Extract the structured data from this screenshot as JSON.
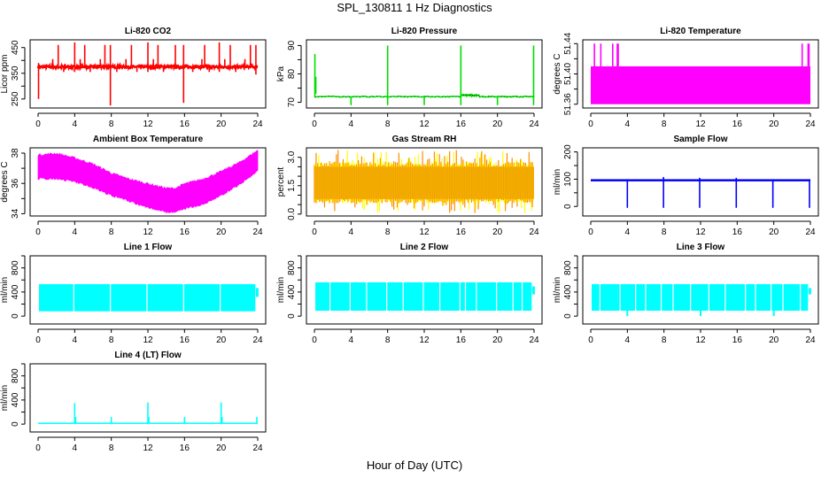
{
  "page": {
    "title": "SPL_130811  1 Hz Diagnostics",
    "x_axis_label": "Hour of Day (UTC)"
  },
  "chart_data": [
    {
      "id": "li820-co2",
      "type": "line",
      "title": "Li-820 CO2",
      "xlabel": "Hour of Day (UTC)",
      "ylabel": "Licor ppm",
      "color": "#ff0000",
      "xlim": [
        0,
        24
      ],
      "ylim": [
        215,
        480
      ],
      "xticks": [
        0,
        4,
        8,
        12,
        16,
        20,
        24
      ],
      "yticks": [
        250,
        300,
        350,
        400,
        450
      ],
      "ytick_labels": [
        "250",
        "",
        "350",
        "",
        "450"
      ],
      "baseline": 375,
      "noise": 5,
      "spikes": [
        {
          "x": 0.05,
          "low": 250,
          "high": 390
        },
        {
          "x": 1.6,
          "low": 375,
          "high": 405
        },
        {
          "x": 2.2,
          "low": 375,
          "high": 460
        },
        {
          "x": 2.8,
          "low": 355,
          "high": 375
        },
        {
          "x": 4.0,
          "low": 355,
          "high": 470
        },
        {
          "x": 4.6,
          "low": 375,
          "high": 405
        },
        {
          "x": 5.1,
          "low": 375,
          "high": 460
        },
        {
          "x": 5.7,
          "low": 355,
          "high": 375
        },
        {
          "x": 6.8,
          "low": 375,
          "high": 405
        },
        {
          "x": 7.3,
          "low": 375,
          "high": 460
        },
        {
          "x": 7.9,
          "low": 225,
          "high": 460
        },
        {
          "x": 8.6,
          "low": 355,
          "high": 375
        },
        {
          "x": 9.6,
          "low": 375,
          "high": 405
        },
        {
          "x": 10.2,
          "low": 375,
          "high": 460
        },
        {
          "x": 10.8,
          "low": 355,
          "high": 375
        },
        {
          "x": 12.0,
          "low": 355,
          "high": 470
        },
        {
          "x": 12.6,
          "low": 375,
          "high": 405
        },
        {
          "x": 13.1,
          "low": 375,
          "high": 460
        },
        {
          "x": 13.7,
          "low": 355,
          "high": 375
        },
        {
          "x": 15.0,
          "low": 375,
          "high": 460
        },
        {
          "x": 15.9,
          "low": 235,
          "high": 460
        },
        {
          "x": 16.9,
          "low": 355,
          "high": 375
        },
        {
          "x": 17.9,
          "low": 375,
          "high": 405
        },
        {
          "x": 18.2,
          "low": 375,
          "high": 460
        },
        {
          "x": 18.7,
          "low": 355,
          "high": 375
        },
        {
          "x": 19.8,
          "low": 355,
          "high": 470
        },
        {
          "x": 20.4,
          "low": 375,
          "high": 405
        },
        {
          "x": 21.0,
          "low": 375,
          "high": 460
        },
        {
          "x": 21.6,
          "low": 355,
          "high": 375
        },
        {
          "x": 22.6,
          "low": 375,
          "high": 405
        },
        {
          "x": 23.2,
          "low": 375,
          "high": 460
        },
        {
          "x": 23.8,
          "low": 345,
          "high": 460
        }
      ]
    },
    {
      "id": "li820-pressure",
      "type": "line",
      "title": "Li-820 Pressure",
      "xlabel": "Hour of Day (UTC)",
      "ylabel": "kPa",
      "color": "#00dd00",
      "xlim": [
        0,
        24
      ],
      "ylim": [
        68,
        92
      ],
      "xticks": [
        0,
        4,
        8,
        12,
        16,
        20,
        24
      ],
      "yticks": [
        70,
        75,
        80,
        85,
        90
      ],
      "ytick_labels": [
        "70",
        "",
        "80",
        "",
        "90"
      ],
      "baseline": 72,
      "noise": 0.15,
      "segments": [
        {
          "x0": 0,
          "x1": 16,
          "value": 72
        },
        {
          "x0": 16,
          "x1": 18,
          "value": 72.5
        },
        {
          "x0": 18,
          "x1": 24,
          "value": 72
        }
      ],
      "spikes": [
        {
          "x": 0.05,
          "low": 72,
          "high": 87
        },
        {
          "x": 0.15,
          "low": 73,
          "high": 79
        },
        {
          "x": 4.0,
          "low": 69,
          "high": 72
        },
        {
          "x": 8.0,
          "low": 69,
          "high": 90
        },
        {
          "x": 12.0,
          "low": 69,
          "high": 72
        },
        {
          "x": 16.0,
          "low": 69,
          "high": 90
        },
        {
          "x": 20.0,
          "low": 69,
          "high": 72
        },
        {
          "x": 23.95,
          "low": 69,
          "high": 90
        }
      ]
    },
    {
      "id": "li820-temperature",
      "type": "area",
      "title": "Li-820 Temperature",
      "xlabel": "Hour of Day (UTC)",
      "ylabel": "degrees C",
      "color": "#ff00ff",
      "xlim": [
        0,
        24
      ],
      "ylim": [
        51.355,
        51.445
      ],
      "xticks": [
        0,
        4,
        8,
        12,
        16,
        20,
        24
      ],
      "yticks": [
        51.36,
        51.38,
        51.4,
        51.42,
        51.44
      ],
      "ytick_labels": [
        "51.36",
        "",
        "51.40",
        "",
        "51.44"
      ],
      "band": {
        "low": 51.36,
        "high": 51.41
      },
      "spikes": [
        {
          "x": 0.4,
          "low": 51.41,
          "high": 51.44
        },
        {
          "x": 1.1,
          "low": 51.41,
          "high": 51.44
        },
        {
          "x": 2.4,
          "low": 51.41,
          "high": 51.44
        },
        {
          "x": 2.9,
          "low": 51.41,
          "high": 51.44
        },
        {
          "x": 3.0,
          "low": 51.41,
          "high": 51.44
        },
        {
          "x": 23.1,
          "low": 51.41,
          "high": 51.44
        },
        {
          "x": 23.75,
          "low": 51.41,
          "high": 51.44
        },
        {
          "x": 23.85,
          "low": 51.41,
          "high": 51.44
        }
      ]
    },
    {
      "id": "ambient-box-temperature",
      "type": "area",
      "title": "Ambient Box Temperature",
      "xlabel": "Hour of Day (UTC)",
      "ylabel": "degrees C",
      "color": "#ff00ff",
      "xlim": [
        0,
        24
      ],
      "ylim": [
        33.85,
        38.35
      ],
      "xticks": [
        0,
        4,
        8,
        12,
        16,
        20,
        24
      ],
      "yticks": [
        34,
        35,
        36,
        37,
        38
      ],
      "ytick_labels": [
        "34",
        "",
        "36",
        "",
        "38"
      ],
      "envelope": {
        "x": [
          0,
          2,
          4,
          6,
          8,
          10,
          12,
          14,
          15,
          16,
          18,
          20,
          22,
          24
        ],
        "low": [
          36.4,
          36.4,
          36.2,
          35.8,
          35.3,
          34.9,
          34.5,
          34.2,
          34.2,
          34.4,
          34.7,
          35.3,
          36.0,
          36.9
        ],
        "high": [
          37.8,
          37.9,
          37.6,
          37.2,
          36.6,
          36.2,
          35.9,
          35.6,
          35.6,
          35.9,
          36.2,
          36.7,
          37.3,
          38.1
        ]
      }
    },
    {
      "id": "gas-stream-rh",
      "type": "area",
      "title": "Gas Stream RH",
      "xlabel": "Hour of Day (UTC)",
      "ylabel": "percent",
      "color": "#ff8c00",
      "color_secondary": "#ffff00",
      "xlim": [
        0,
        24
      ],
      "ylim": [
        -0.1,
        3.5
      ],
      "xticks": [
        0,
        4,
        8,
        12,
        16,
        20,
        24
      ],
      "yticks": [
        0.0,
        0.5,
        1.0,
        1.5,
        2.0,
        2.5,
        3.0
      ],
      "ytick_labels": [
        "0.0",
        "",
        "",
        "1.5",
        "",
        "",
        "3.0"
      ],
      "band": {
        "low": 0.8,
        "high": 2.5
      },
      "range": {
        "min": 0.05,
        "max": 3.4
      }
    },
    {
      "id": "sample-flow",
      "type": "line",
      "title": "Sample Flow",
      "xlabel": "Hour of Day (UTC)",
      "ylabel": "ml/min",
      "color": "#0000ff",
      "xlim": [
        0,
        24
      ],
      "ylim": [
        -35,
        215
      ],
      "xticks": [
        0,
        4,
        8,
        12,
        16,
        20,
        24
      ],
      "yticks": [
        0,
        50,
        100,
        150,
        200
      ],
      "ytick_labels": [
        "0",
        "",
        "100",
        "",
        "200"
      ],
      "band": {
        "low": 92,
        "high": 100
      },
      "spikes": [
        {
          "x": 4.0,
          "low": -5,
          "high": 100
        },
        {
          "x": 7.95,
          "low": -5,
          "high": 108
        },
        {
          "x": 11.9,
          "low": -5,
          "high": 105
        },
        {
          "x": 15.9,
          "low": -5,
          "high": 105
        },
        {
          "x": 19.9,
          "low": -5,
          "high": 100
        },
        {
          "x": 23.9,
          "low": -5,
          "high": 100
        }
      ]
    },
    {
      "id": "line-1-flow",
      "type": "area",
      "title": "Line 1 Flow",
      "xlabel": "Hour of Day (UTC)",
      "ylabel": "ml/min",
      "color": "#00ffff",
      "xlim": [
        0,
        24
      ],
      "ylim": [
        -130,
        1000
      ],
      "xticks": [
        0,
        4,
        8,
        12,
        16,
        20,
        24
      ],
      "yticks": [
        0,
        200,
        400,
        600,
        800,
        1000
      ],
      "ytick_labels": [
        "0",
        "",
        "400",
        "",
        "800",
        ""
      ],
      "band": {
        "low": 80,
        "high": 530
      },
      "gaps": [
        3.9,
        7.9,
        11.9,
        15.9,
        19.9
      ]
    },
    {
      "id": "line-2-flow",
      "type": "area",
      "title": "Line 2 Flow",
      "xlabel": "Hour of Day (UTC)",
      "ylabel": "ml/min",
      "color": "#00ffff",
      "xlim": [
        0,
        24
      ],
      "ylim": [
        -130,
        1000
      ],
      "xticks": [
        0,
        4,
        8,
        12,
        16,
        20,
        24
      ],
      "yticks": [
        0,
        200,
        400,
        600,
        800,
        1000
      ],
      "ytick_labels": [
        "0",
        "",
        "400",
        "",
        "800",
        ""
      ],
      "band": {
        "low": 90,
        "high": 560
      },
      "gaps": [
        1.7,
        3.9,
        5.7,
        7.9,
        9.7,
        11.9,
        13.7,
        15.9,
        16.5,
        17.7,
        19.9,
        21.7,
        22.7
      ]
    },
    {
      "id": "line-3-flow",
      "type": "area",
      "title": "Line 3 Flow",
      "xlabel": "Hour of Day (UTC)",
      "ylabel": "ml/min",
      "color": "#00ffff",
      "xlim": [
        0,
        24
      ],
      "ylim": [
        -130,
        1000
      ],
      "xticks": [
        0,
        4,
        8,
        12,
        16,
        20,
        24
      ],
      "yticks": [
        0,
        200,
        400,
        600,
        800,
        1000
      ],
      "ytick_labels": [
        "0",
        "",
        "400",
        "",
        "800",
        ""
      ],
      "band": {
        "low": 90,
        "high": 530
      },
      "gaps": [
        1.0,
        3.2,
        4.9,
        6.0,
        7.7,
        9.0,
        10.9,
        12.9,
        14.7,
        16.9,
        18.0,
        19.7,
        21.0,
        22.9
      ],
      "dips": [
        4.0,
        12.0,
        20.0
      ]
    },
    {
      "id": "line-4-lt-flow",
      "type": "line",
      "title": "Line 4 (LT) Flow",
      "xlabel": "Hour of Day (UTC)",
      "ylabel": "ml/min",
      "color": "#00ffff",
      "xlim": [
        0,
        24
      ],
      "ylim": [
        -130,
        1000
      ],
      "xticks": [
        0,
        4,
        8,
        12,
        16,
        20,
        24
      ],
      "yticks": [
        0,
        200,
        400,
        600,
        800,
        1000
      ],
      "ytick_labels": [
        "0",
        "",
        "400",
        "",
        "800",
        ""
      ],
      "band": {
        "low": 5,
        "high": 25
      },
      "spikes": [
        {
          "x": 4.0,
          "low": 15,
          "high": 350
        },
        {
          "x": 4.1,
          "low": 15,
          "high": 120
        },
        {
          "x": 8.0,
          "low": 15,
          "high": 120
        },
        {
          "x": 12.0,
          "low": 15,
          "high": 360
        },
        {
          "x": 12.1,
          "low": 15,
          "high": 120
        },
        {
          "x": 16.0,
          "low": 15,
          "high": 120
        },
        {
          "x": 20.0,
          "low": 15,
          "high": 360
        },
        {
          "x": 20.1,
          "low": 15,
          "high": 120
        },
        {
          "x": 23.9,
          "low": 15,
          "high": 120
        }
      ]
    }
  ]
}
